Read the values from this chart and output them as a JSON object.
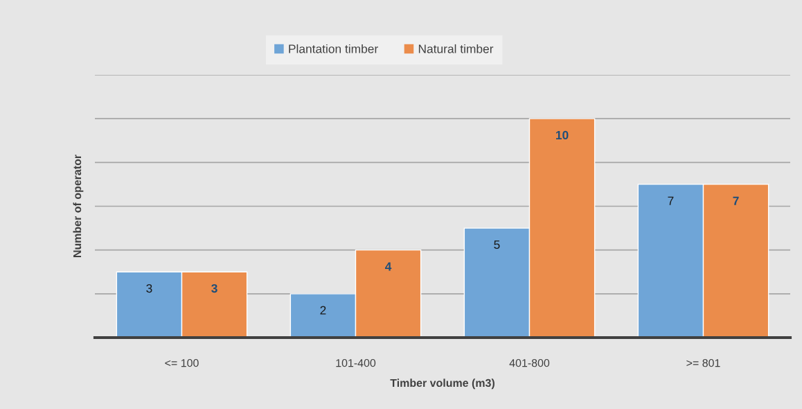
{
  "chart_data": {
    "type": "bar",
    "xlabel": "Timber volume (m3)",
    "ylabel": "Number of operator",
    "categories": [
      "<= 100",
      "101-400",
      "401-800",
      ">= 801"
    ],
    "series": [
      {
        "name": "Plantation timber",
        "color": "#6fa5d7",
        "values": [
          3,
          2,
          5,
          7
        ]
      },
      {
        "name": "Natural timber",
        "color": "#eb8c4b",
        "values": [
          3,
          4,
          10,
          7
        ]
      }
    ],
    "ylim": [
      0,
      12
    ],
    "yticks": [
      0,
      2,
      4,
      6,
      8,
      10,
      12
    ],
    "tick_labels": "x",
    "grid": "y",
    "legend": "top",
    "data_labels": true
  }
}
